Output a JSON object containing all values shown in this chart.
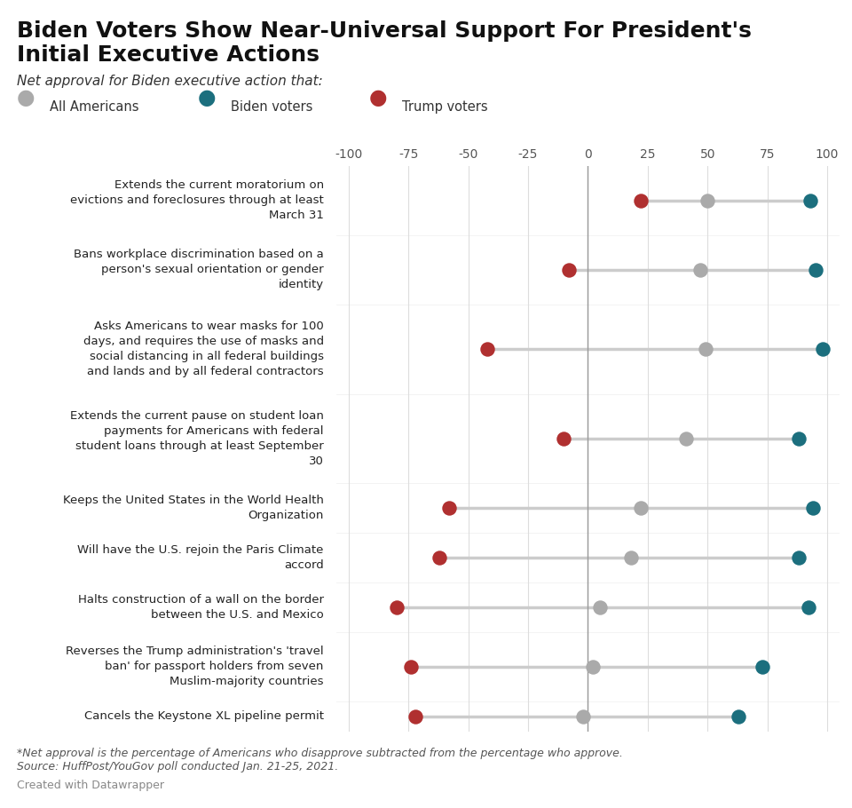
{
  "title_line1": "Biden Voters Show Near-Universal Support For President's",
  "title_line2": "Initial Executive Actions",
  "subtitle": "Net approval for Biden executive action that:",
  "footnote_line1": "*Net approval is the percentage of Americans who disapprove subtracted from the percentage who approve.",
  "footnote_line2": "Source: HuffPost/YouGov poll conducted Jan. 21-25, 2021.",
  "credit": "Created with Datawrapper",
  "legend": [
    "All Americans",
    "Biden voters",
    "Trump voters"
  ],
  "legend_colors": [
    "#aaaaaa",
    "#1c6f7e",
    "#b03030"
  ],
  "categories": [
    "Extends the current moratorium on\nevictions and foreclosures through at least\nMarch 31",
    "Bans workplace discrimination based on a\nperson's sexual orientation or gender\nidentity",
    "Asks Americans to wear masks for 100\ndays, and requires the use of masks and\nsocial distancing in all federal buildings\nand lands and by all federal contractors",
    "Extends the current pause on student loan\npayments for Americans with federal\nstudent loans through at least September\n30",
    "Keeps the United States in the World Health\nOrganization",
    "Will have the U.S. rejoin the Paris Climate\naccord",
    "Halts construction of a wall on the border\nbetween the U.S. and Mexico",
    "Reverses the Trump administration's 'travel\nban' for passport holders from seven\nMuslim-majority countries",
    "Cancels the Keystone XL pipeline permit"
  ],
  "num_lines": [
    3,
    3,
    4,
    4,
    2,
    2,
    2,
    3,
    1
  ],
  "all_americans": [
    50,
    47,
    49,
    41,
    22,
    18,
    5,
    2,
    -2
  ],
  "biden_voters": [
    93,
    95,
    98,
    88,
    94,
    88,
    92,
    73,
    63
  ],
  "trump_voters": [
    22,
    -8,
    -42,
    -10,
    -58,
    -62,
    -80,
    -74,
    -72
  ],
  "xlim": [
    -105,
    105
  ],
  "xticks": [
    -100,
    -75,
    -50,
    -25,
    0,
    25,
    50,
    75,
    100
  ],
  "color_all": "#aaaaaa",
  "color_biden": "#1c6f7e",
  "color_trump": "#b03030",
  "color_line": "#cccccc",
  "color_grid": "#dddddd",
  "background": "#ffffff"
}
